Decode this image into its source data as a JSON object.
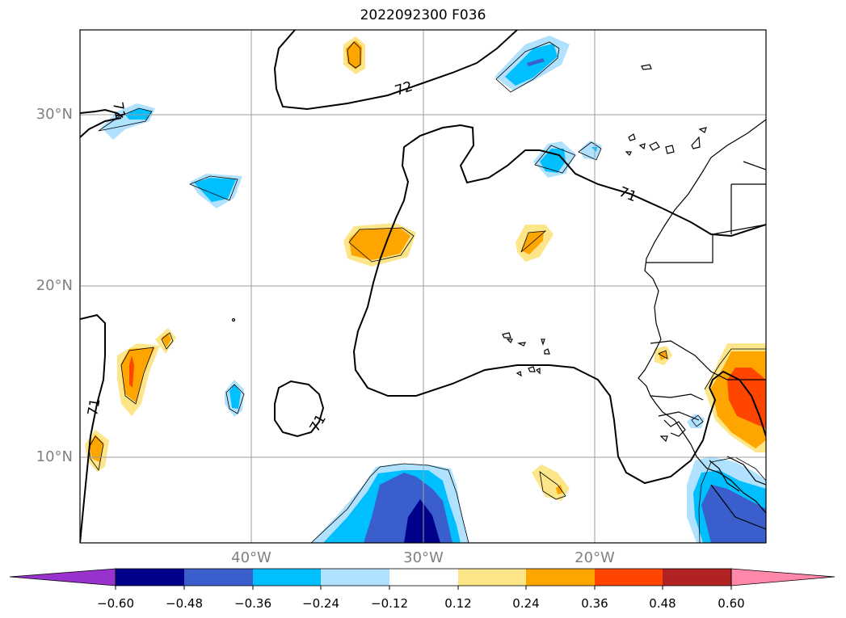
{
  "title": "2022092300 F036",
  "lat_labels": [
    "30°N",
    "20°N",
    "10°N"
  ],
  "lon_labels": [
    "40°W",
    "30°W",
    "20°W"
  ],
  "contour_labels": [
    "72",
    "71",
    "71",
    "71",
    "71"
  ],
  "colorbar": {
    "labels": [
      "−0.60",
      "−0.48",
      "−0.36",
      "−0.24",
      "−0.12",
      "0.12",
      "0.24",
      "0.36",
      "0.48",
      "0.60"
    ],
    "colors": [
      "#9932cc",
      "#00008b",
      "#3a5fcd",
      "#00bfff",
      "#b0e2ff",
      "#ffffff",
      "#fde68a",
      "#ffa500",
      "#ff4500",
      "#b22222",
      "#ff88aa"
    ]
  },
  "colors": {
    "frame": "#000000",
    "grid": "#9e9e9e",
    "coast": "#000000"
  }
}
